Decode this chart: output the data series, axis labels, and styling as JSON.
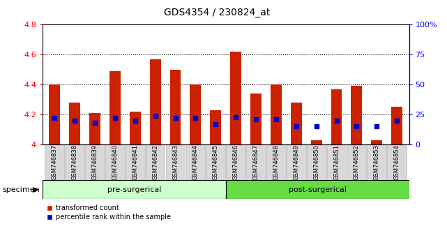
{
  "title": "GDS4354 / 230824_at",
  "samples": [
    "GSM746837",
    "GSM746838",
    "GSM746839",
    "GSM746840",
    "GSM746841",
    "GSM746842",
    "GSM746843",
    "GSM746844",
    "GSM746845",
    "GSM746846",
    "GSM746847",
    "GSM746848",
    "GSM746849",
    "GSM746850",
    "GSM746851",
    "GSM746852",
    "GSM746853",
    "GSM746854"
  ],
  "transformed_count": [
    4.4,
    4.28,
    4.21,
    4.49,
    4.22,
    4.57,
    4.5,
    4.4,
    4.23,
    4.62,
    4.34,
    4.4,
    4.28,
    4.03,
    4.37,
    4.39,
    4.03,
    4.25
  ],
  "percentile_rank": [
    22,
    20,
    18,
    22,
    20,
    24,
    22,
    22,
    17,
    23,
    21,
    21,
    15,
    15,
    20,
    15,
    15,
    20
  ],
  "pre_surgical_label": "pre-surgerical",
  "post_surgical_label": "post-surgerical",
  "pre_surgical_n": 9,
  "post_surgical_n": 9,
  "pre_color": "#ccffcc",
  "post_color": "#66dd44",
  "ylim": [
    4.0,
    4.8
  ],
  "yticks_left": [
    4.0,
    4.2,
    4.4,
    4.6,
    4.8
  ],
  "ytick_labels_left": [
    "4",
    "4.2",
    "4.4",
    "4.6",
    "4.8"
  ],
  "yticks_right": [
    0,
    25,
    50,
    75,
    100
  ],
  "ytick_labels_right": [
    "0",
    "25",
    "50",
    "75",
    "100%"
  ],
  "bar_color": "#cc2200",
  "dot_color": "#0000cc",
  "bar_width": 0.55,
  "baseline": 4.0,
  "legend_red": "transformed count",
  "legend_blue": "percentile rank within the sample",
  "specimen_label": "specimen",
  "grid_lines": [
    4.2,
    4.4,
    4.6
  ],
  "title_fontsize": 10,
  "tick_fontsize": 8,
  "label_fontsize": 8,
  "xtick_fontsize": 6,
  "xticklabel_bg": "#d8d8d8"
}
